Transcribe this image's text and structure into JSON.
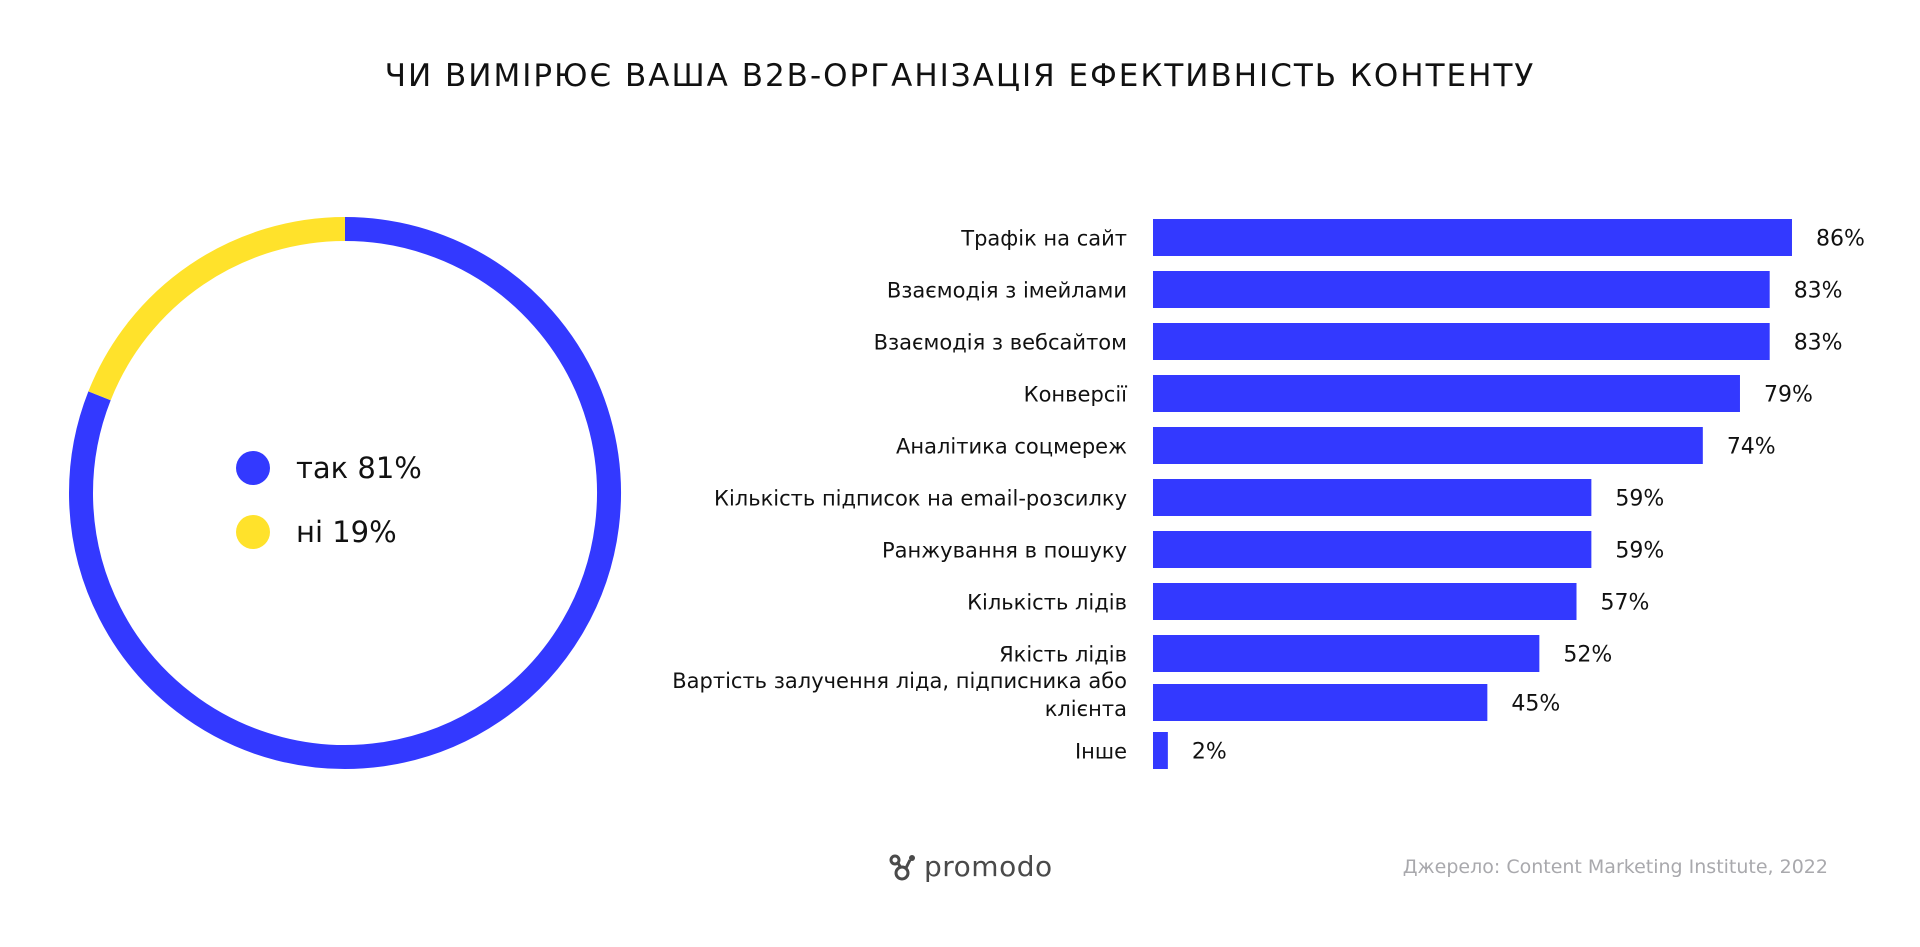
{
  "title": "ЧИ ВИМІРЮЄ ВАША B2B-ОРГАНІЗАЦІЯ ЕФЕКТИВНІСТЬ КОНТЕНТУ",
  "colors": {
    "blue": "#3339FF",
    "yellow": "#FFE22B"
  },
  "legend": [
    {
      "label": "так 81%",
      "color": "#3339FF"
    },
    {
      "label": "ні 19%",
      "color": "#FFE22B"
    }
  ],
  "footer": {
    "logo_text": "promodo",
    "logo_icon": "promodo-logo-icon",
    "source": "Джерело: Content Marketing Institute, 2022"
  },
  "chart_data": [
    {
      "type": "pie",
      "style": "donut",
      "slices": [
        {
          "name": "так",
          "value": 81,
          "color": "#3339FF"
        },
        {
          "name": "ні",
          "value": 19,
          "color": "#FFE22B"
        }
      ]
    },
    {
      "type": "bar",
      "orientation": "horizontal",
      "color": "#3339FF",
      "categories": [
        "Трафік на сайт",
        "Взаємодія з імейлами",
        "Взаємодія з вебсайтом",
        "Конверсії",
        "Аналітика соцмереж",
        "Кількість підписок на email-розсилку",
        "Ранжування в пошуку",
        "Кількість лідів",
        "Якість лідів",
        "Вартість залучення ліда, підписника або клієнта",
        "Інше"
      ],
      "category_lines": [
        [
          "Трафік на сайт"
        ],
        [
          "Взаємодія з імейлами"
        ],
        [
          "Взаємодія з вебсайтом"
        ],
        [
          "Конверсії"
        ],
        [
          "Аналітика соцмереж"
        ],
        [
          "Кількість підписок на email-розсилку"
        ],
        [
          "Ранжування в пошуку"
        ],
        [
          "Кількість лідів"
        ],
        [
          "Якість лідів"
        ],
        [
          "Вартість залучення ліда, підписника або",
          "клієнта"
        ],
        [
          "Інше"
        ]
      ],
      "values": [
        86,
        83,
        83,
        79,
        74,
        59,
        59,
        57,
        52,
        45,
        2
      ],
      "value_labels": [
        "86%",
        "83%",
        "83%",
        "79%",
        "74%",
        "59%",
        "59%",
        "57%",
        "52%",
        "45%",
        "2%"
      ]
    }
  ]
}
